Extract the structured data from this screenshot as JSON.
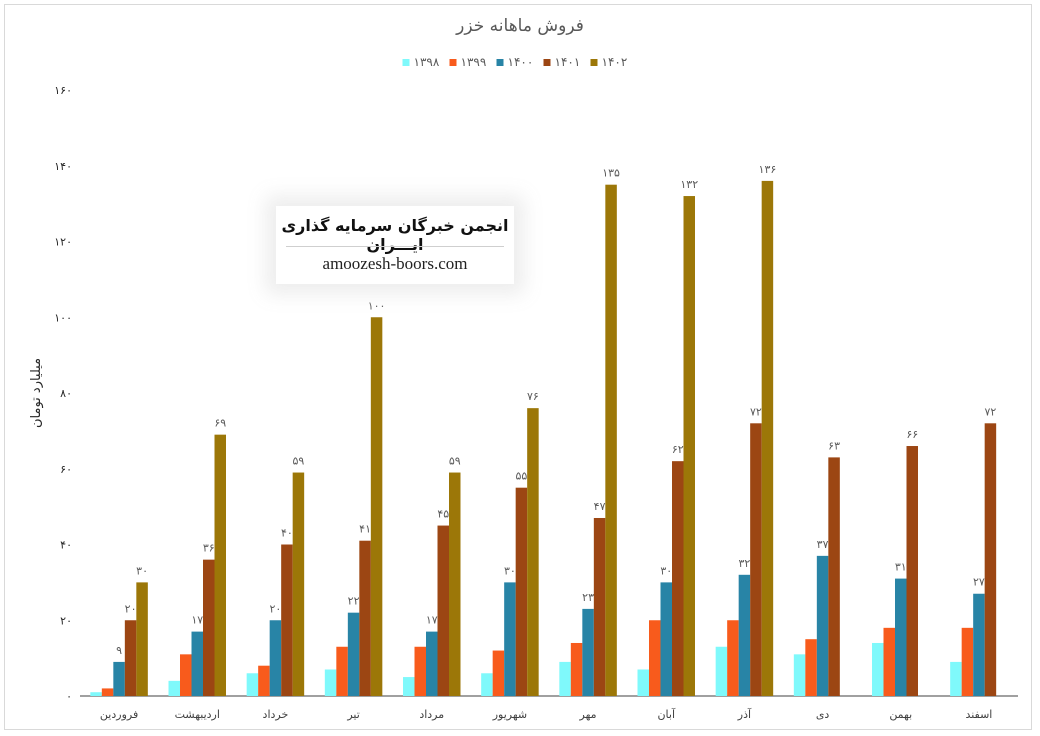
{
  "chart_data": {
    "type": "bar",
    "title": "فروش ماهانه خزر",
    "ylabel": "میلیارد تومان",
    "xlabel": "",
    "ylim": [
      0,
      160
    ],
    "yticks": [
      0,
      20,
      40,
      60,
      80,
      100,
      120,
      140,
      160
    ],
    "ytick_labels": [
      "۰",
      "۲۰",
      "۴۰",
      "۶۰",
      "۸۰",
      "۱۰۰",
      "۱۲۰",
      "۱۴۰",
      "۱۶۰"
    ],
    "grid": false,
    "legend_position": "top-center",
    "categories": [
      "فروردین",
      "اردیبهشت",
      "خرداد",
      "تیر",
      "مرداد",
      "شهریور",
      "مهر",
      "آبان",
      "آذر",
      "دی",
      "بهمن",
      "اسفند"
    ],
    "series": [
      {
        "name": "۱۳۹۸",
        "color": "#7ff9fb",
        "values": [
          1,
          4,
          6,
          7,
          5,
          6,
          9,
          7,
          13,
          11,
          14,
          9
        ],
        "labels": []
      },
      {
        "name": "۱۳۹۹",
        "color": "#f85b1c",
        "values": [
          2,
          11,
          8,
          13,
          13,
          12,
          14,
          20,
          20,
          15,
          18,
          18
        ],
        "labels": []
      },
      {
        "name": "۱۴۰۰",
        "color": "#2884a6",
        "values": [
          9,
          17,
          20,
          22,
          17,
          30,
          23,
          30,
          32,
          37,
          31,
          27
        ],
        "labels": [
          "۹",
          "۱۷",
          "۲۰",
          "۲۲",
          "۱۷",
          "۳۰",
          "۲۳",
          "۳۰",
          "۳۲",
          "۳۷",
          "۳۱",
          "۲۷"
        ]
      },
      {
        "name": "۱۴۰۱",
        "color": "#9c4613",
        "values": [
          20,
          36,
          40,
          41,
          45,
          55,
          47,
          62,
          72,
          63,
          66,
          72
        ],
        "labels": [
          "۲۰",
          "۳۶",
          "۴۰",
          "۴۱",
          "۴۵",
          "۵۵",
          "۴۷",
          "۶۲",
          "۷۲",
          "۶۳",
          "۶۶",
          "۷۲"
        ]
      },
      {
        "name": "۱۴۰۲",
        "color": "#9c7708",
        "values": [
          30,
          69,
          59,
          100,
          59,
          76,
          135,
          132,
          136,
          null,
          null,
          null
        ],
        "labels": [
          "۳۰",
          "۶۹",
          "۵۹",
          "۱۰۰",
          "۵۹",
          "۷۶",
          "۱۳۵",
          "۱۳۲",
          "۱۳۶",
          "",
          "",
          ""
        ]
      }
    ]
  },
  "watermark": {
    "title": "انجمن خبرگان سرمایه گذاری ایـــران",
    "url": "amoozesh-boors.com"
  }
}
